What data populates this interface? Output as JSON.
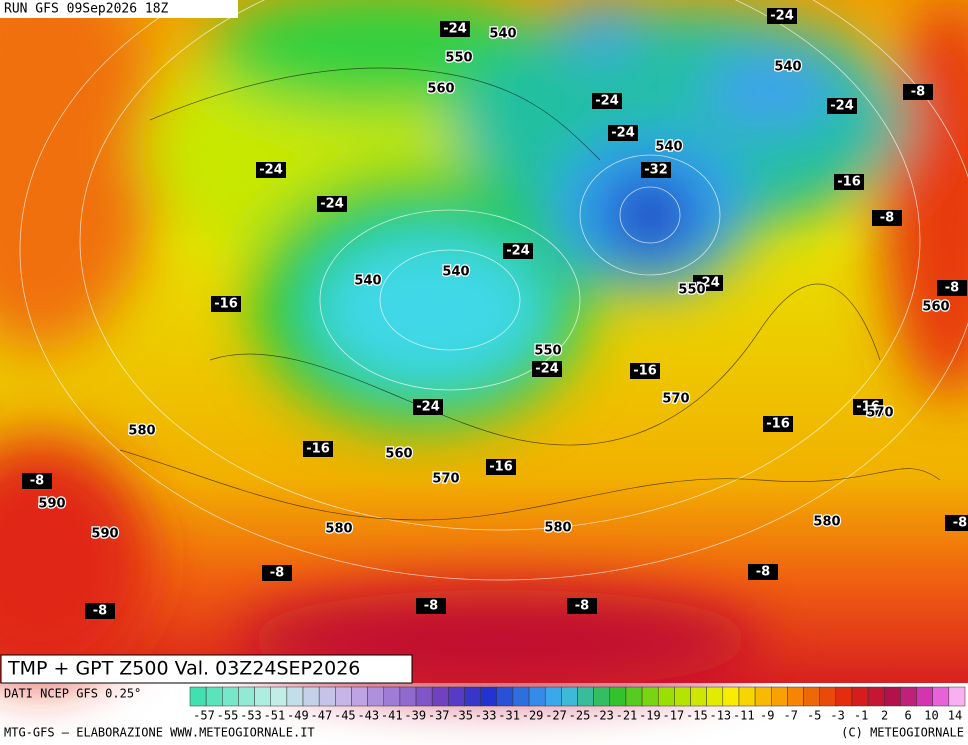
{
  "header": {
    "run": "RUN GFS 09Sep2026 18Z",
    "title": "TMP + GPT Z500 Val. 03Z24SEP2026"
  },
  "footer": {
    "source": "DATI NCEP GFS 0.25°",
    "credits": "MTG-GFS – ELABORAZIONE WWW.METEOGIORNALE.IT",
    "copyright": "(C) METEOGIORNALE"
  },
  "legend": {
    "labels": [
      -57,
      -55,
      -53,
      -51,
      -49,
      -47,
      -45,
      -43,
      -41,
      -39,
      -37,
      -35,
      -33,
      -31,
      -29,
      -27,
      -25,
      -23,
      -21,
      -19,
      -17,
      -15,
      -13,
      -11,
      -9,
      -7,
      -5,
      -3,
      -1,
      2,
      6,
      10,
      14
    ]
  },
  "map": {
    "temperature_labels": [
      -24,
      -24,
      -24,
      -24,
      -24,
      -8,
      -24,
      -32,
      -16,
      -24,
      -8,
      -24,
      -24,
      -8,
      -16,
      -24,
      -16,
      -24,
      -16,
      -16,
      -16,
      -16,
      -8,
      -8,
      -8,
      -8,
      -8,
      -8,
      -8
    ],
    "geopotential_labels": [
      540,
      550,
      540,
      560,
      540,
      540,
      540,
      550,
      560,
      550,
      570,
      570,
      580,
      560,
      570,
      590,
      590,
      580,
      580,
      580
    ]
  }
}
